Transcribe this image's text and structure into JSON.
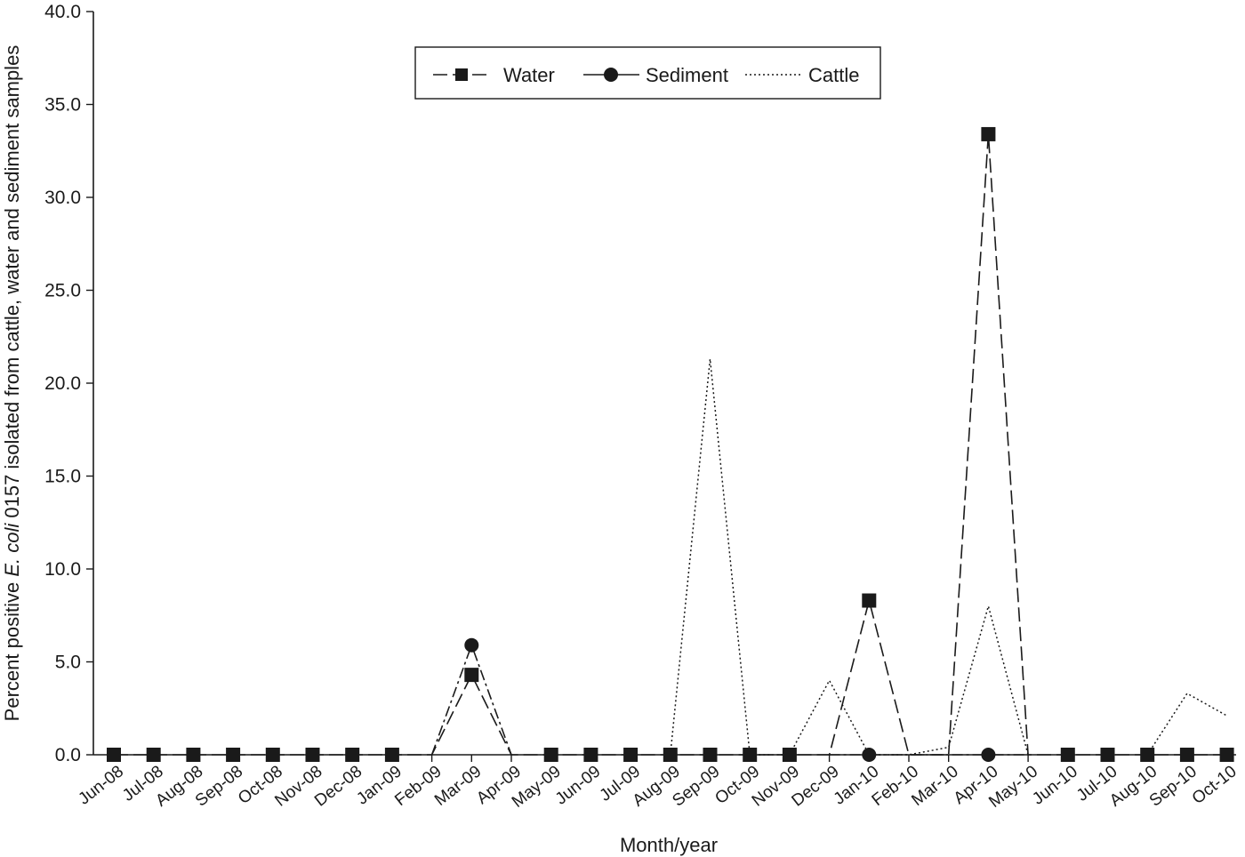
{
  "chart_data": {
    "type": "line",
    "title": "",
    "xlabel": "Month/year",
    "ylabel": {
      "before": "Percent positive ",
      "italic": "E. coli",
      "after": " 0157 isolated from cattle, water and sediment samples"
    },
    "ylim": [
      0,
      40
    ],
    "yticks": [
      "0.0",
      "5.0",
      "10.0",
      "15.0",
      "20.0",
      "25.0",
      "30.0",
      "35.0",
      "40.0"
    ],
    "grid": false,
    "legend_position": "top-center",
    "categories": [
      "Jun-08",
      "Jul-08",
      "Aug-08",
      "Sep-08",
      "Oct-08",
      "Nov-08",
      "Dec-08",
      "Jan-09",
      "Feb-09",
      "Mar-09",
      "Apr-09",
      "May-09",
      "Jun-09",
      "Jul-09",
      "Aug-09",
      "Sep-09",
      "Oct-09",
      "Nov-09",
      "Dec-09",
      "Jan-10",
      "Feb-10",
      "Mar-10",
      "Apr-10",
      "May-10",
      "Jun-10",
      "Jul-10",
      "Aug-10",
      "Sep-10",
      "Oct-10"
    ],
    "series": [
      {
        "name": "Water",
        "marker": "square",
        "style": "dashed",
        "values": [
          0,
          0,
          0,
          0,
          0,
          0,
          0,
          0,
          0,
          4.3,
          0,
          0,
          0,
          0,
          0,
          0,
          0,
          0,
          0,
          8.3,
          0,
          0,
          33.4,
          0,
          0,
          0,
          0,
          0,
          0
        ]
      },
      {
        "name": "Sediment",
        "marker": "circle",
        "style": "dash-dot",
        "values": [
          null,
          null,
          null,
          null,
          null,
          null,
          null,
          null,
          0,
          5.9,
          0,
          null,
          null,
          null,
          null,
          null,
          null,
          null,
          0,
          0,
          0,
          0,
          0,
          0,
          null,
          null,
          null,
          null,
          null
        ]
      },
      {
        "name": "Cattle",
        "marker": "none",
        "style": "dotted",
        "values": [
          null,
          null,
          null,
          null,
          null,
          null,
          null,
          null,
          null,
          null,
          null,
          null,
          null,
          null,
          0,
          21.3,
          0,
          0,
          4.0,
          0,
          0,
          0.4,
          8.0,
          0,
          null,
          null,
          0,
          3.3,
          2.1
        ]
      }
    ]
  }
}
